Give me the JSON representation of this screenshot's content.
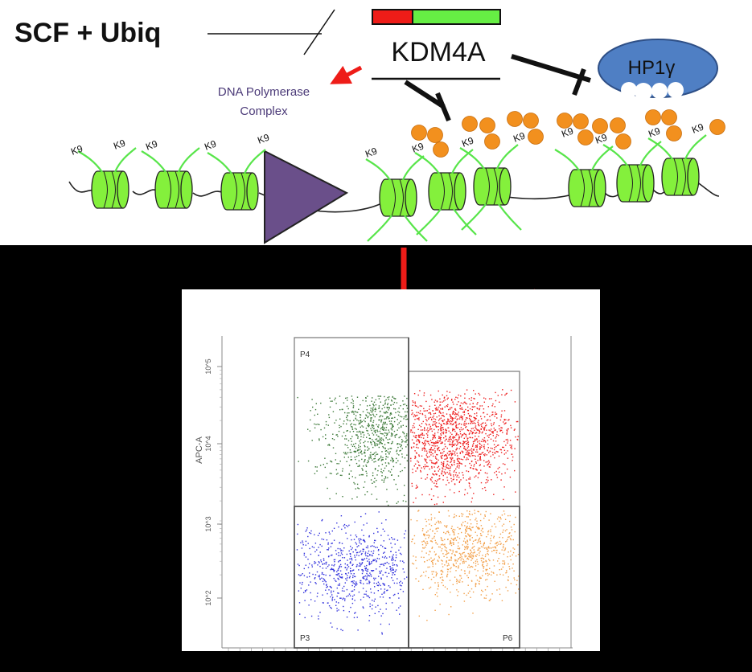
{
  "diagram": {
    "scf_label": "SCF + Ubiq",
    "kdm4a_label": "KDM4A",
    "hp1_label": "HP1γ",
    "polymerase_label_line1": "DNA Polymerase",
    "polymerase_label_line2": "Complex",
    "k9_label": "K9",
    "colors": {
      "nucleosome": "#84f03c",
      "tail": "#58e54a",
      "methyl": "#f2901e",
      "hp1": "#4f7fc4",
      "polymerase": "#6a4f8a",
      "arrow": "#ee1c18",
      "kdm4a_bar_red": "#ee1c18",
      "kdm4a_bar_green": "#66ee44",
      "polymerase_text": "#4b3a78"
    }
  },
  "flow_plot": {
    "y_axis_label": "APC-A",
    "y_tick_labels": [
      "10^2",
      "10^3",
      "10^4",
      "10^5"
    ],
    "gate_labels": {
      "p4": "P4",
      "p3": "P3",
      "p6": "P6"
    },
    "population_colors": {
      "p4": "#3e7a3a",
      "p5": "#ee2222",
      "p3": "#3333dd",
      "p6": "#f2a04a"
    }
  }
}
